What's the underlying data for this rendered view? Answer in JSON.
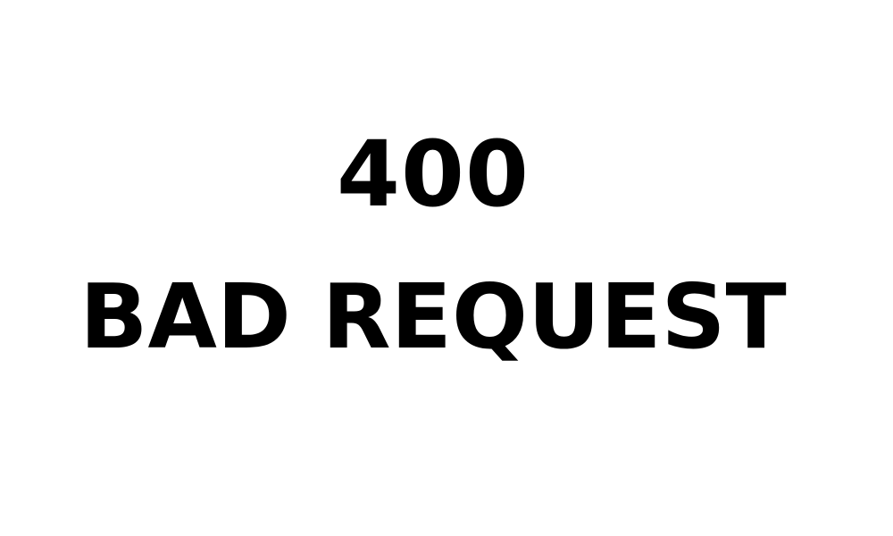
{
  "error": {
    "code": "400",
    "message": "BAD REQUEST"
  },
  "colors": {
    "background": "#ffffff",
    "text": "#000000"
  }
}
